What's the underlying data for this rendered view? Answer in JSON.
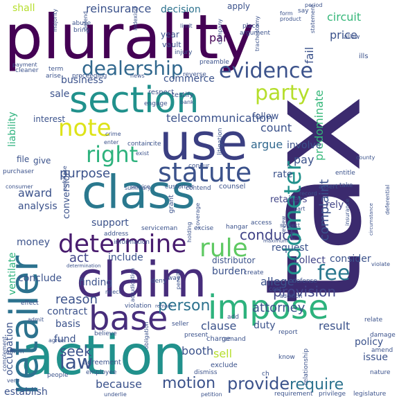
{
  "palette": {
    "background": "#ffffff",
    "dark_purple": "#440154",
    "indigo": "#472d7b",
    "blue": "#3b528b",
    "slate": "#2c728e",
    "teal": "#21918c",
    "green_teal": "#28ae80",
    "green": "#5ec962",
    "lime": "#addc30",
    "yellow": "#dde318"
  },
  "words": [
    {
      "text": "plurality",
      "color": "#440154"
    },
    {
      "text": "tax",
      "color": "#3b2a6e"
    },
    {
      "text": "action",
      "color": "#21918c"
    },
    {
      "text": "claim",
      "color": "#472d7b"
    },
    {
      "text": "class",
      "color": "#2a788e"
    },
    {
      "text": "use",
      "color": "#3b3f82"
    },
    {
      "text": "section",
      "color": "#21918c"
    },
    {
      "text": "retailer",
      "color": "#2c728e"
    },
    {
      "text": "impose",
      "color": "#2db27d"
    },
    {
      "text": "base",
      "color": "#472d7b"
    },
    {
      "text": "statute",
      "color": "#3b528b"
    },
    {
      "text": "determine",
      "color": "#481c6e"
    },
    {
      "text": "rule",
      "color": "#5ec962"
    },
    {
      "text": "odometer",
      "color": "#21918c"
    },
    {
      "text": "evidence",
      "color": "#3b528b"
    },
    {
      "text": "dealership",
      "color": "#31688e"
    },
    {
      "text": "party",
      "color": "#b5de2b"
    },
    {
      "text": "right",
      "color": "#2db27d"
    },
    {
      "text": "note",
      "color": "#dde318"
    },
    {
      "text": "fee",
      "color": "#2a788e"
    },
    {
      "text": "law",
      "color": "#3b528b"
    },
    {
      "text": "provide",
      "color": "#3b528b"
    },
    {
      "text": "motion",
      "color": "#3b528b"
    },
    {
      "text": "require",
      "color": "#2c728e"
    },
    {
      "text": "person",
      "color": "#2c728e"
    },
    {
      "text": "attorney",
      "color": "#3b528b"
    },
    {
      "text": "conduct",
      "color": "#414487"
    },
    {
      "text": "seek",
      "color": "#3b528b"
    },
    {
      "text": "provision",
      "color": "#414487"
    },
    {
      "text": "purpose",
      "color": "#3b528b"
    },
    {
      "text": "act",
      "color": "#414487"
    },
    {
      "text": "count",
      "color": "#3b528b"
    },
    {
      "text": "argue",
      "color": "#31688e"
    },
    {
      "text": "pay",
      "color": "#3b528b"
    },
    {
      "text": "complaint",
      "color": "#3b528b"
    },
    {
      "text": "predominate",
      "color": "#35b779"
    },
    {
      "text": "telecommunication",
      "color": "#3b528b"
    },
    {
      "text": "reinsurance",
      "color": "#3b528b"
    },
    {
      "text": "decision",
      "color": "#2c728e"
    },
    {
      "text": "shall",
      "color": "#b5de2b"
    },
    {
      "text": "circuit",
      "color": "#35b779"
    },
    {
      "text": "fail",
      "color": "#3b528b"
    },
    {
      "text": "price",
      "color": "#3b528b"
    },
    {
      "text": "par",
      "color": "#440154"
    },
    {
      "text": "commerce",
      "color": "#3b528b"
    },
    {
      "text": "business",
      "color": "#3b528b"
    },
    {
      "text": "sale",
      "color": "#3b528b"
    },
    {
      "text": "interest",
      "color": "#3b528b"
    },
    {
      "text": "follow",
      "color": "#3b528b"
    },
    {
      "text": "involve",
      "color": "#3b528b"
    },
    {
      "text": "rate",
      "color": "#3b528b"
    },
    {
      "text": "rely",
      "color": "#414487"
    },
    {
      "text": "retailers",
      "color": "#414487"
    },
    {
      "text": "award",
      "color": "#3b528b"
    },
    {
      "text": "analysis",
      "color": "#3b528b"
    },
    {
      "text": "support",
      "color": "#3b528b"
    },
    {
      "text": "conversion",
      "color": "#3b528b"
    },
    {
      "text": "burden",
      "color": "#3b528b"
    },
    {
      "text": "request",
      "color": "#3b528b"
    },
    {
      "text": "collect",
      "color": "#414487"
    },
    {
      "text": "consider",
      "color": "#3b528b"
    },
    {
      "text": "include",
      "color": "#3b528b"
    },
    {
      "text": "distributor",
      "color": "#3b528b"
    },
    {
      "text": "finding",
      "color": "#3b528b"
    },
    {
      "text": "allege",
      "color": "#3b528b"
    },
    {
      "text": "reason",
      "color": "#3b528b"
    },
    {
      "text": "conclude",
      "color": "#3b528b"
    },
    {
      "text": "contract",
      "color": "#3b528b"
    },
    {
      "text": "clause",
      "color": "#3b528b"
    },
    {
      "text": "duty",
      "color": "#3b528b"
    },
    {
      "text": "basis",
      "color": "#3b528b"
    },
    {
      "text": "fund",
      "color": "#3b528b"
    },
    {
      "text": "booth",
      "color": "#3b528b"
    },
    {
      "text": "sell",
      "color": "#b5de2b"
    },
    {
      "text": "result",
      "color": "#3b528b"
    },
    {
      "text": "policy",
      "color": "#3b528b"
    },
    {
      "text": "issue",
      "color": "#3b528b"
    },
    {
      "text": "because",
      "color": "#3b528b"
    },
    {
      "text": "occupation",
      "color": "#3b528b"
    },
    {
      "text": "ventilate",
      "color": "#2db27d"
    },
    {
      "text": "money",
      "color": "#3b528b"
    },
    {
      "text": "liability",
      "color": "#2db27d"
    },
    {
      "text": "establish",
      "color": "#3b528b"
    },
    {
      "text": "file",
      "color": "#3b528b"
    },
    {
      "text": "give",
      "color": "#3b528b"
    },
    {
      "text": "year",
      "color": "#3b528b"
    },
    {
      "text": "vault",
      "color": "#3b528b"
    },
    {
      "text": "apply",
      "color": "#3b528b"
    },
    {
      "text": "respect",
      "color": "#3b528b"
    },
    {
      "text": "engage",
      "color": "#3b528b"
    },
    {
      "text": "testify",
      "color": "#3b528b"
    },
    {
      "text": "preamble",
      "color": "#3b528b"
    },
    {
      "text": "reverse",
      "color": "#3b528b"
    },
    {
      "text": "cite",
      "color": "#3b528b"
    },
    {
      "text": "contain",
      "color": "#3b528b"
    },
    {
      "text": "enter",
      "color": "#3b528b"
    },
    {
      "text": "crime",
      "color": "#3b528b"
    },
    {
      "text": "litigation",
      "color": "#3b528b"
    },
    {
      "text": "concur",
      "color": "#3b528b"
    },
    {
      "text": "service",
      "color": "#3b528b"
    },
    {
      "text": "customer",
      "color": "#3b528b"
    },
    {
      "text": "contend",
      "color": "#3b528b"
    },
    {
      "text": "counsel",
      "color": "#3b528b"
    },
    {
      "text": "summary",
      "color": "#3b528b"
    },
    {
      "text": "grant",
      "color": "#3b528b"
    },
    {
      "text": "address",
      "color": "#3b528b"
    },
    {
      "text": "information",
      "color": "#3b528b"
    },
    {
      "text": "serviceman",
      "color": "#3b528b"
    },
    {
      "text": "excise",
      "color": "#3b528b"
    },
    {
      "text": "hangar",
      "color": "#3b528b"
    },
    {
      "text": "deny",
      "color": "#3b528b"
    },
    {
      "text": "way",
      "color": "#3b528b"
    },
    {
      "text": "reject",
      "color": "#3b528b"
    },
    {
      "text": "violation",
      "color": "#3b528b"
    },
    {
      "text": "remain",
      "color": "#3b528b"
    },
    {
      "text": "seller",
      "color": "#3b528b"
    },
    {
      "text": "charge",
      "color": "#3b528b"
    },
    {
      "text": "add",
      "color": "#3b528b"
    },
    {
      "text": "present",
      "color": "#3b528b"
    },
    {
      "text": "remand",
      "color": "#3b528b"
    },
    {
      "text": "exclude",
      "color": "#3b528b"
    },
    {
      "text": "dismiss",
      "color": "#3b528b"
    },
    {
      "text": "agreement",
      "color": "#3b528b"
    },
    {
      "text": "employee",
      "color": "#3b528b"
    },
    {
      "text": "people",
      "color": "#3b528b"
    },
    {
      "text": "underlie",
      "color": "#3b528b"
    },
    {
      "text": "petition",
      "color": "#3b528b"
    },
    {
      "text": "requirement",
      "color": "#3b528b"
    },
    {
      "text": "privilege",
      "color": "#3b528b"
    },
    {
      "text": "legislature",
      "color": "#3b528b"
    },
    {
      "text": "know",
      "color": "#3b528b"
    },
    {
      "text": "relationship",
      "color": "#3b528b"
    },
    {
      "text": "nature",
      "color": "#3b528b"
    },
    {
      "text": "amend",
      "color": "#3b528b"
    },
    {
      "text": "damage",
      "color": "#3b528b"
    },
    {
      "text": "relate",
      "color": "#3b528b"
    },
    {
      "text": "violate",
      "color": "#3b528b"
    },
    {
      "text": "defense",
      "color": "#3b528b"
    },
    {
      "text": "addition",
      "color": "#3b528b"
    },
    {
      "text": "cost",
      "color": "#3b528b"
    },
    {
      "text": "create",
      "color": "#3b528b"
    },
    {
      "text": "access",
      "color": "#3b528b"
    },
    {
      "text": "record",
      "color": "#3b528b"
    },
    {
      "text": "assert",
      "color": "#3b528b"
    },
    {
      "text": "entitle",
      "color": "#3b528b"
    },
    {
      "text": "county",
      "color": "#3b528b"
    },
    {
      "text": "take",
      "color": "#3b528b"
    },
    {
      "text": "part",
      "color": "#3b528b"
    },
    {
      "text": "insurance",
      "color": "#3b528b"
    },
    {
      "text": "review",
      "color": "#3b528b"
    },
    {
      "text": "subject",
      "color": "#3b528b"
    },
    {
      "text": "purchaser",
      "color": "#3b528b"
    },
    {
      "text": "consumer",
      "color": "#3b528b"
    },
    {
      "text": "purchase",
      "color": "#3b528b"
    },
    {
      "text": "term",
      "color": "#3b528b"
    },
    {
      "text": "bring",
      "color": "#3b528b"
    },
    {
      "text": "abuse",
      "color": "#3b528b"
    },
    {
      "text": "majority",
      "color": "#3b528b"
    },
    {
      "text": "payment",
      "color": "#3b528b"
    },
    {
      "text": "cleaner",
      "color": "#3b528b"
    },
    {
      "text": "arise",
      "color": "#3b528b"
    },
    {
      "text": "proceeding",
      "color": "#3b528b"
    },
    {
      "text": "news",
      "color": "#3b528b"
    },
    {
      "text": "indexing",
      "color": "#3b528b"
    },
    {
      "text": "defend",
      "color": "#3b528b"
    },
    {
      "text": "limit",
      "color": "#3b528b"
    },
    {
      "text": "injury",
      "color": "#3b528b"
    },
    {
      "text": "company",
      "color": "#3b528b"
    },
    {
      "text": "tracheotomy",
      "color": "#3b528b"
    },
    {
      "text": "place",
      "color": "#3b528b"
    },
    {
      "text": "argument",
      "color": "#3b528b"
    },
    {
      "text": "product",
      "color": "#3b528b"
    },
    {
      "text": "form",
      "color": "#3b528b"
    },
    {
      "text": "say",
      "color": "#3b528b"
    },
    {
      "text": "period",
      "color": "#3b528b"
    },
    {
      "text": "statement",
      "color": "#3b528b"
    },
    {
      "text": "allow",
      "color": "#3b528b"
    },
    {
      "text": "ills",
      "color": "#3b528b"
    },
    {
      "text": "circumstance",
      "color": "#3b528b"
    },
    {
      "text": "deferential",
      "color": "#3b528b"
    },
    {
      "text": "complement",
      "color": "#3b528b"
    },
    {
      "text": "verb",
      "color": "#3b528b"
    },
    {
      "text": "affirm",
      "color": "#3b528b"
    },
    {
      "text": "admit",
      "color": "#3b528b"
    },
    {
      "text": "effect",
      "color": "#3b528b"
    },
    {
      "text": "agree",
      "color": "#3b528b"
    },
    {
      "text": "believe",
      "color": "#3b528b"
    },
    {
      "text": "adjudication",
      "color": "#3b528b"
    },
    {
      "text": "determination",
      "color": "#3b528b"
    },
    {
      "text": "obligation",
      "color": "#3b528b"
    },
    {
      "text": "penalty",
      "color": "#3b528b"
    },
    {
      "text": "maximum",
      "color": "#3b528b"
    },
    {
      "text": "holding",
      "color": "#3b528b"
    },
    {
      "text": "coverage",
      "color": "#3b528b"
    },
    {
      "text": "exist",
      "color": "#3b528b"
    },
    {
      "text": "bank",
      "color": "#3b528b"
    },
    {
      "text": "ch",
      "color": "#3b528b"
    },
    {
      "text": "report",
      "color": "#3b528b"
    }
  ]
}
